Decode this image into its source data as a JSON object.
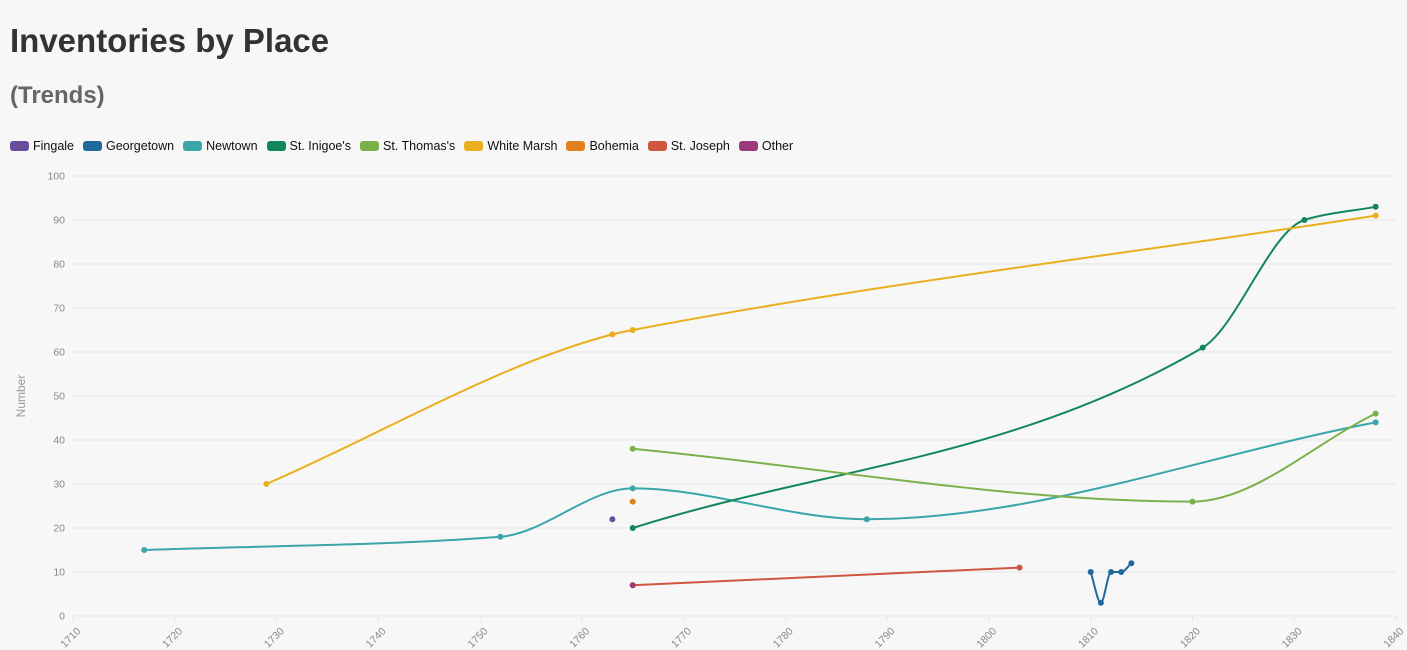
{
  "page": {
    "title": "Inventories by Place",
    "subtitle": "(Trends)"
  },
  "chart_data": {
    "type": "line",
    "ylabel": "Number",
    "xlabel": "",
    "xlim": [
      1710,
      1840
    ],
    "ylim": [
      0,
      100
    ],
    "x_ticks": [
      1710,
      1720,
      1730,
      1740,
      1750,
      1760,
      1770,
      1780,
      1790,
      1800,
      1810,
      1820,
      1830,
      1840
    ],
    "y_ticks": [
      0,
      10,
      20,
      30,
      40,
      50,
      60,
      70,
      80,
      90,
      100
    ],
    "grid": true,
    "legend_position": "top-left",
    "series": [
      {
        "name": "Fingale",
        "color": "#6a4c9c",
        "points": [
          [
            1763,
            22
          ]
        ]
      },
      {
        "name": "Georgetown",
        "color": "#1f6a9a",
        "points": [
          [
            1810,
            10
          ],
          [
            1811,
            3
          ],
          [
            1812,
            10
          ],
          [
            1813,
            10
          ],
          [
            1814,
            12
          ]
        ]
      },
      {
        "name": "Newtown",
        "color": "#3aa6a9",
        "points": [
          [
            1717,
            15
          ],
          [
            1752,
            18
          ],
          [
            1765,
            29
          ],
          [
            1788,
            22
          ],
          [
            1838,
            44
          ]
        ]
      },
      {
        "name": "St. Inigoe's",
        "color": "#12875a",
        "points": [
          [
            1765,
            20
          ],
          [
            1821,
            61
          ],
          [
            1831,
            90
          ],
          [
            1838,
            93
          ]
        ]
      },
      {
        "name": "St. Thomas's",
        "color": "#7cb04a",
        "points": [
          [
            1765,
            38
          ],
          [
            1820,
            26
          ],
          [
            1838,
            46
          ]
        ]
      },
      {
        "name": "White Marsh",
        "color": "#eaaf1e",
        "points": [
          [
            1729,
            30
          ],
          [
            1763,
            64
          ],
          [
            1765,
            65
          ],
          [
            1838,
            91
          ]
        ]
      },
      {
        "name": "Bohemia",
        "color": "#e0801e",
        "points": [
          [
            1765,
            26
          ]
        ]
      },
      {
        "name": "St. Joseph",
        "color": "#d05540",
        "points": [
          [
            1765,
            7
          ],
          [
            1803,
            11
          ]
        ]
      },
      {
        "name": "Other",
        "color": "#9c3a7a",
        "points": [
          [
            1765,
            7
          ]
        ]
      }
    ]
  }
}
